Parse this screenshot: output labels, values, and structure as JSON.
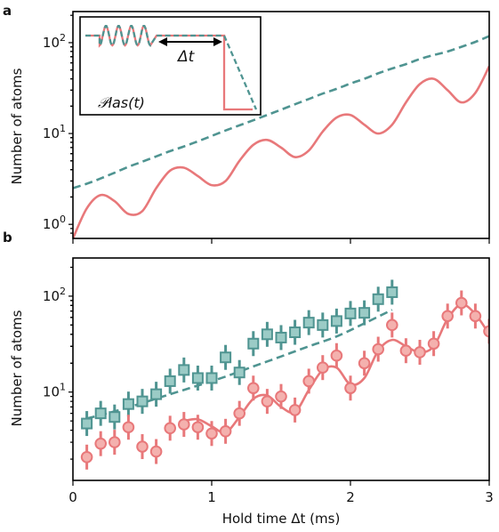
{
  "colors": {
    "red": "#e8787a",
    "teal": "#4f9491",
    "red_fill": "#f4b1ae",
    "teal_fill": "#9bcbc6"
  },
  "chart_data": [
    {
      "panel": "a",
      "type": "line",
      "ylabel": "Number of atoms",
      "yscale": "log",
      "xlim": [
        0,
        3
      ],
      "ylim": [
        0.7,
        220
      ],
      "yticks": [
        "10^0",
        "10^1",
        "10^2"
      ],
      "inset": {
        "delta_label": "Δt",
        "signal_label": "𝒫las(t)"
      },
      "series": [
        {
          "style": "dashed",
          "color": "teal",
          "x": [
            0.0,
            0.1,
            0.2,
            0.3,
            0.4,
            0.5,
            0.6,
            0.7,
            0.8,
            0.9,
            1.0,
            1.1,
            1.2,
            1.3,
            1.4,
            1.5,
            1.6,
            1.7,
            1.8,
            1.9,
            2.0,
            2.1,
            2.2,
            2.3,
            2.4,
            2.5,
            2.6,
            2.7,
            2.8,
            2.9,
            3.0
          ],
          "y": [
            2.5,
            2.8,
            3.2,
            3.7,
            4.3,
            4.9,
            5.6,
            6.4,
            7.2,
            8.2,
            9.4,
            10.8,
            12.3,
            14.0,
            16.0,
            18.3,
            21.0,
            24.0,
            27.5,
            31.0,
            35.5,
            40.0,
            46.0,
            52.0,
            58.0,
            66.0,
            73.0,
            80.0,
            90.0,
            102.0,
            118.0
          ]
        },
        {
          "style": "solid",
          "color": "red",
          "x": [
            0.0,
            0.1,
            0.2,
            0.3,
            0.4,
            0.5,
            0.6,
            0.7,
            0.8,
            0.9,
            1.0,
            1.1,
            1.2,
            1.3,
            1.4,
            1.5,
            1.6,
            1.7,
            1.8,
            1.9,
            2.0,
            2.1,
            2.2,
            2.3,
            2.4,
            2.5,
            2.6,
            2.7,
            2.8,
            2.9,
            3.0
          ],
          "y": [
            0.7,
            1.5,
            2.1,
            1.8,
            1.3,
            1.4,
            2.5,
            3.9,
            4.2,
            3.4,
            2.7,
            3.0,
            5.0,
            7.5,
            8.5,
            7.0,
            5.5,
            6.5,
            10.5,
            15.0,
            16.0,
            12.5,
            10.0,
            12.5,
            22.0,
            35.0,
            40.0,
            30.0,
            22.0,
            28.0,
            55.0
          ]
        }
      ]
    },
    {
      "panel": "b",
      "type": "scatter",
      "xlabel": "Hold time Δt (ms)",
      "ylabel": "Number of atoms",
      "yscale": "log",
      "xlim": [
        0,
        3
      ],
      "ylim": [
        1.2,
        250
      ],
      "xticks": [
        "0",
        "1",
        "2",
        "3"
      ],
      "yticks": [
        "10^1",
        "10^2"
      ],
      "series": [
        {
          "marker": "square",
          "color": "teal",
          "x": [
            0.1,
            0.2,
            0.3,
            0.4,
            0.5,
            0.6,
            0.7,
            0.8,
            0.9,
            1.0,
            1.1,
            1.2,
            1.3,
            1.4,
            1.5,
            1.6,
            1.7,
            1.8,
            1.9,
            2.0,
            2.1,
            2.2,
            2.3
          ],
          "y": [
            4.7,
            6.0,
            5.5,
            7.5,
            8.0,
            9.5,
            13.0,
            17.0,
            14.0,
            14.0,
            23.0,
            16.0,
            32.0,
            40.0,
            37.0,
            42.0,
            53.0,
            50.0,
            55.0,
            66.0,
            67.0,
            93.0,
            110.0
          ]
        },
        {
          "marker": "circle",
          "color": "red",
          "x": [
            0.1,
            0.2,
            0.3,
            0.4,
            0.5,
            0.6,
            0.7,
            0.8,
            0.9,
            1.0,
            1.1,
            1.2,
            1.3,
            1.4,
            1.5,
            1.6,
            1.7,
            1.8,
            1.9,
            2.0,
            2.1,
            2.2,
            2.3,
            2.4,
            2.5,
            2.6,
            2.7,
            2.8,
            2.9,
            3.0
          ],
          "y": [
            2.1,
            2.9,
            3.0,
            4.3,
            2.7,
            2.4,
            4.2,
            4.6,
            4.3,
            3.7,
            3.9,
            6.0,
            11.0,
            8.0,
            9.0,
            6.5,
            13.0,
            18.0,
            24.0,
            11.0,
            20.0,
            28.0,
            50.0,
            27.0,
            26.0,
            32.0,
            62.0,
            85.0,
            62.0,
            43.0
          ]
        },
        {
          "style": "dashed",
          "color": "teal",
          "kind": "fit",
          "x": [
            0.1,
            0.3,
            0.5,
            0.7,
            0.9,
            1.1,
            1.3,
            1.5,
            1.7,
            1.9,
            2.1,
            2.3
          ],
          "y": [
            5.3,
            6.3,
            7.7,
            9.5,
            11.7,
            14.5,
            18.5,
            23.5,
            30.0,
            38.0,
            52.0,
            72.0
          ]
        },
        {
          "style": "solid",
          "color": "red",
          "kind": "fit",
          "x": [
            0.8,
            0.9,
            1.0,
            1.1,
            1.2,
            1.3,
            1.4,
            1.5,
            1.6,
            1.7,
            1.8,
            1.9,
            2.0,
            2.1,
            2.2,
            2.3,
            2.4,
            2.5,
            2.6,
            2.7,
            2.8,
            2.9,
            3.0
          ],
          "y": [
            5.0,
            5.2,
            4.4,
            3.8,
            5.5,
            8.5,
            9.2,
            7.0,
            6.2,
            10.5,
            17.0,
            18.0,
            12.0,
            14.0,
            27.0,
            35.0,
            30.0,
            26.0,
            30.0,
            58.0,
            82.0,
            65.0,
            40.0
          ]
        }
      ]
    }
  ],
  "labels": {
    "panel_a": "a",
    "panel_b": "b"
  }
}
